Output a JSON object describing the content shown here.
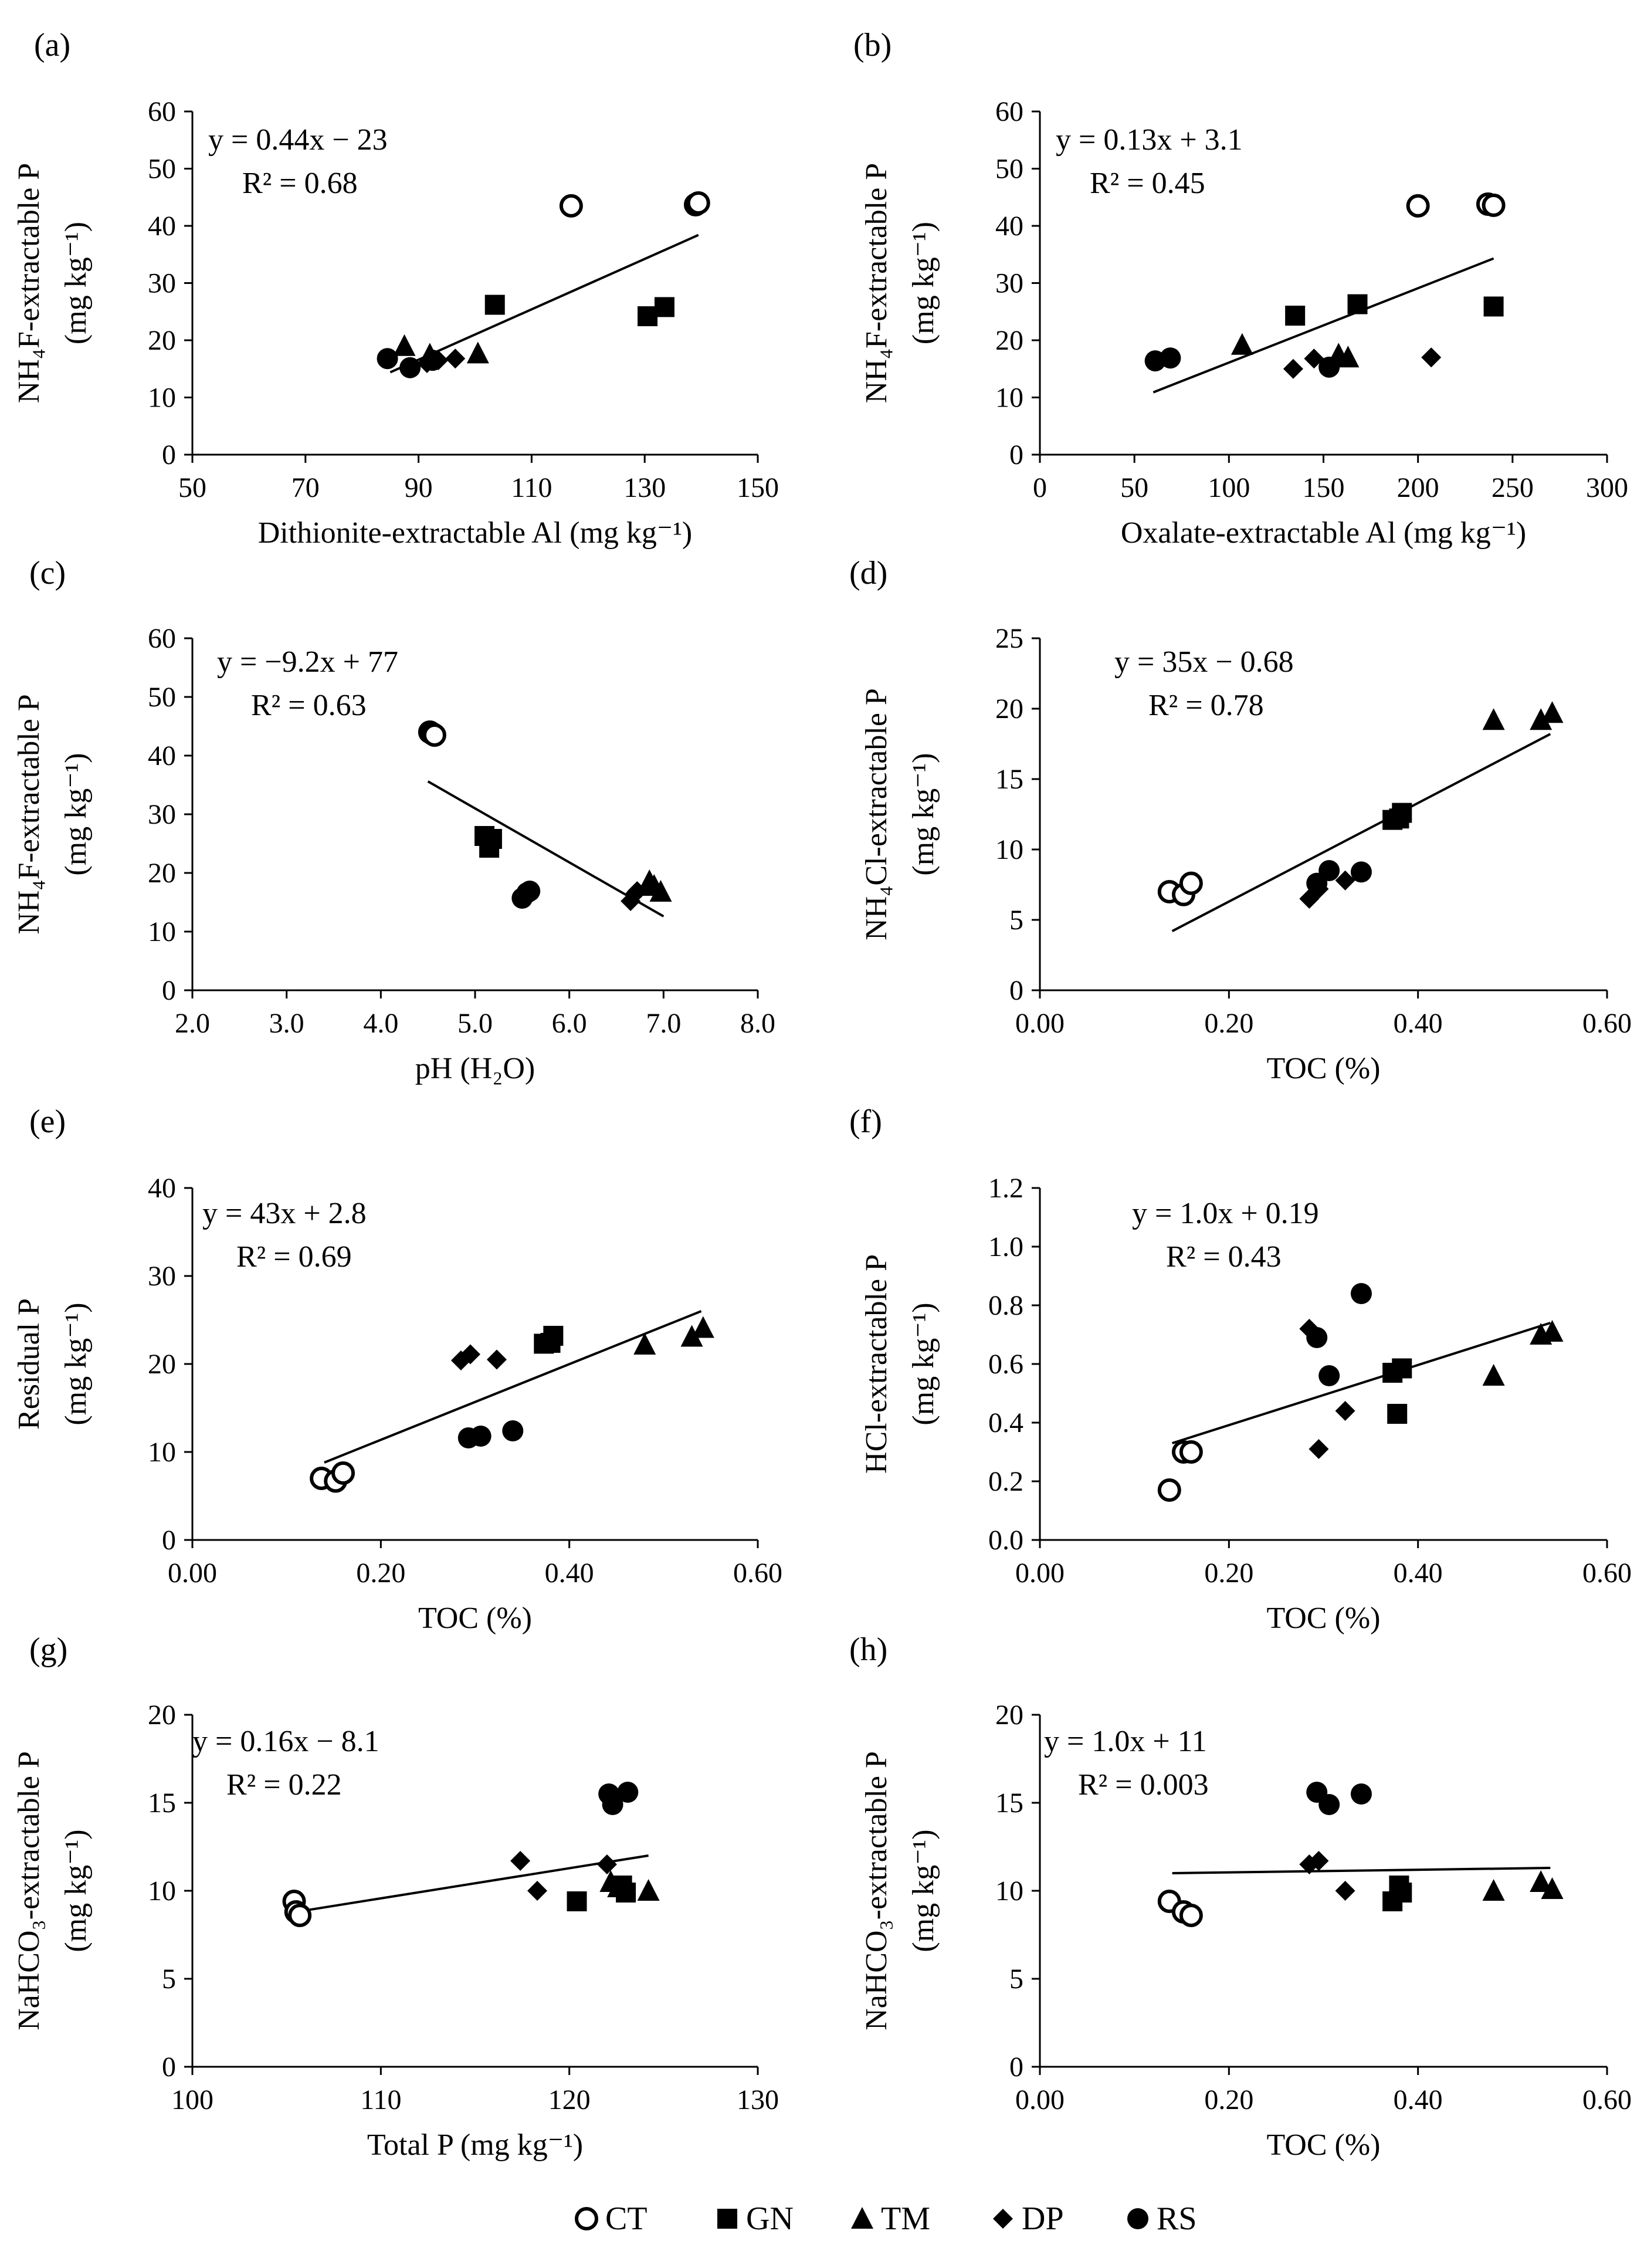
{
  "chart_data": [
    {
      "panel": "(a)",
      "type": "scatter",
      "xlabel": "Dithionite-extractable Al (mg kg⁻¹)",
      "ylabel_line1": "NH₄F-extractable P",
      "ylabel_line2": "(mg kg⁻¹)",
      "xlim": [
        50,
        150
      ],
      "ylim": [
        0,
        60
      ],
      "xticks": [
        "50",
        "70",
        "90",
        "110",
        "130",
        "150"
      ],
      "yticks": [
        "0",
        "10",
        "20",
        "30",
        "40",
        "50",
        "60"
      ],
      "equation": "y = 0.44x − 23",
      "r2": "R² = 0.68",
      "trend": [
        [
          85,
          14.4
        ],
        [
          139.5,
          38.4
        ]
      ],
      "series": [
        {
          "name": "CT",
          "x": [
            117,
            139,
            139.5
          ],
          "y": [
            43.5,
            43.7,
            44
          ]
        },
        {
          "name": "GN",
          "x": [
            103.5,
            130.5,
            133.5
          ],
          "y": [
            26.2,
            24.2,
            25.8
          ]
        },
        {
          "name": "TM",
          "x": [
            87.5,
            92,
            100.5
          ],
          "y": [
            19,
            17.5,
            17.7
          ]
        },
        {
          "name": "DP",
          "x": [
            91.5,
            93.5,
            96.5
          ],
          "y": [
            16,
            16.5,
            16.8
          ]
        },
        {
          "name": "RS",
          "x": [
            84.5,
            88.5,
            92.5
          ],
          "y": [
            16.8,
            15.2,
            16.5
          ]
        }
      ]
    },
    {
      "panel": "(b)",
      "type": "scatter",
      "xlabel": "Oxalate-extractable Al (mg kg⁻¹)",
      "ylabel_line1": "NH₄F-extractable P",
      "ylabel_line2": "(mg kg⁻¹)",
      "xlim": [
        0,
        300
      ],
      "ylim": [
        0,
        60
      ],
      "xticks": [
        "0",
        "50",
        "100",
        "150",
        "200",
        "250",
        "300"
      ],
      "yticks": [
        "0",
        "10",
        "20",
        "30",
        "40",
        "50",
        "60"
      ],
      "equation": "y = 0.13x + 3.1",
      "r2": "R² = 0.45",
      "trend": [
        [
          60,
          10.9
        ],
        [
          240,
          34.3
        ]
      ],
      "series": [
        {
          "name": "CT",
          "x": [
            200,
            237,
            240
          ],
          "y": [
            43.5,
            43.8,
            43.6
          ]
        },
        {
          "name": "GN",
          "x": [
            135,
            168,
            240
          ],
          "y": [
            24.3,
            26.3,
            25.9
          ]
        },
        {
          "name": "TM",
          "x": [
            107,
            158,
            163
          ],
          "y": [
            19.2,
            17.5,
            17
          ]
        },
        {
          "name": "DP",
          "x": [
            134,
            145,
            207
          ],
          "y": [
            15,
            16.8,
            17
          ]
        },
        {
          "name": "RS",
          "x": [
            61,
            69,
            153
          ],
          "y": [
            16.4,
            16.9,
            15.3
          ]
        }
      ]
    },
    {
      "panel": "(c)",
      "type": "scatter",
      "xlabel": "pH (H₂O)",
      "ylabel_line1": "NH₄F-extractable P",
      "ylabel_line2": "(mg kg⁻¹)",
      "xlim": [
        2,
        8
      ],
      "ylim": [
        0,
        60
      ],
      "xticks": [
        "2.0",
        "3.0",
        "4.0",
        "5.0",
        "6.0",
        "7.0",
        "8.0"
      ],
      "yticks": [
        "0",
        "10",
        "20",
        "30",
        "40",
        "50",
        "60"
      ],
      "equation": "y = −9.2x + 77",
      "r2": "R² = 0.63",
      "trend": [
        [
          4.5,
          35.6
        ],
        [
          7.0,
          12.6
        ]
      ],
      "series": [
        {
          "name": "CT",
          "x": [
            4.52,
            4.55,
            4.57
          ],
          "y": [
            44,
            43.7,
            43.5
          ]
        },
        {
          "name": "GN",
          "x": [
            5.1,
            5.15,
            5.18
          ],
          "y": [
            26.3,
            24.3,
            25.8
          ]
        },
        {
          "name": "TM",
          "x": [
            6.85,
            6.9,
            6.97
          ],
          "y": [
            18.6,
            17.8,
            16.8
          ]
        },
        {
          "name": "DP",
          "x": [
            6.65,
            6.7,
            6.72
          ],
          "y": [
            15.2,
            16.5,
            16.9
          ]
        },
        {
          "name": "RS",
          "x": [
            5.5,
            5.55,
            5.58
          ],
          "y": [
            15.7,
            16.6,
            16.9
          ]
        }
      ]
    },
    {
      "panel": "(d)",
      "type": "scatter",
      "xlabel": "TOC (%)",
      "ylabel_line1": "NH₄Cl-extractable P",
      "ylabel_line2": "(mg kg⁻¹)",
      "xlim": [
        0,
        0.6
      ],
      "ylim": [
        0,
        25
      ],
      "xticks": [
        "0.00",
        "0.20",
        "0.40",
        "0.60"
      ],
      "yticks": [
        "0",
        "5",
        "10",
        "15",
        "20",
        "25"
      ],
      "equation": "y = 35x − 0.68",
      "r2": "R² = 0.78",
      "trend": [
        [
          0.14,
          4.2
        ],
        [
          0.54,
          18.2
        ]
      ],
      "series": [
        {
          "name": "CT",
          "x": [
            0.137,
            0.152,
            0.16
          ],
          "y": [
            7,
            6.8,
            7.6
          ]
        },
        {
          "name": "GN",
          "x": [
            0.373,
            0.38,
            0.383
          ],
          "y": [
            12.1,
            12.2,
            12.6
          ]
        },
        {
          "name": "TM",
          "x": [
            0.48,
            0.53,
            0.542
          ],
          "y": [
            19.2,
            19.2,
            19.7
          ]
        },
        {
          "name": "DP",
          "x": [
            0.285,
            0.295,
            0.323
          ],
          "y": [
            6.5,
            7.2,
            7.8
          ]
        },
        {
          "name": "RS",
          "x": [
            0.293,
            0.306,
            0.34
          ],
          "y": [
            7.6,
            8.5,
            8.4
          ]
        }
      ]
    },
    {
      "panel": "(e)",
      "type": "scatter",
      "xlabel": "TOC (%)",
      "ylabel_line1": "Residual P",
      "ylabel_line2": "(mg kg⁻¹)",
      "xlim": [
        0,
        0.6
      ],
      "ylim": [
        0,
        40
      ],
      "xticks": [
        "0.00",
        "0.20",
        "0.40",
        "0.60"
      ],
      "yticks": [
        "0",
        "10",
        "20",
        "30",
        "40"
      ],
      "equation": "y = 43x + 2.8",
      "r2": "R² = 0.69",
      "trend": [
        [
          0.14,
          8.8
        ],
        [
          0.54,
          26.0
        ]
      ],
      "series": [
        {
          "name": "CT",
          "x": [
            0.137,
            0.152,
            0.16
          ],
          "y": [
            7,
            6.7,
            7.6
          ]
        },
        {
          "name": "GN",
          "x": [
            0.373,
            0.38,
            0.383
          ],
          "y": [
            22.3,
            22.4,
            23.2
          ]
        },
        {
          "name": "TM",
          "x": [
            0.48,
            0.53,
            0.542
          ],
          "y": [
            22.2,
            23.1,
            24.1
          ]
        },
        {
          "name": "DP",
          "x": [
            0.285,
            0.295,
            0.323
          ],
          "y": [
            20.4,
            21.1,
            20.5
          ]
        },
        {
          "name": "RS",
          "x": [
            0.293,
            0.306,
            0.34
          ],
          "y": [
            11.6,
            11.8,
            12.4
          ]
        }
      ]
    },
    {
      "panel": "(f)",
      "type": "scatter",
      "xlabel": "TOC (%)",
      "ylabel_line1": "HCl-extractable P",
      "ylabel_line2": "(mg kg⁻¹)",
      "xlim": [
        0,
        0.6
      ],
      "ylim": [
        0,
        1.2
      ],
      "xticks": [
        "0.00",
        "0.20",
        "0.40",
        "0.60"
      ],
      "yticks": [
        "0.0",
        "0.2",
        "0.4",
        "0.6",
        "0.8",
        "1.0",
        "1.2"
      ],
      "equation": "y = 1.0x + 0.19",
      "r2": "R² = 0.43",
      "trend": [
        [
          0.14,
          0.33
        ],
        [
          0.54,
          0.74
        ]
      ],
      "series": [
        {
          "name": "CT",
          "x": [
            0.137,
            0.152,
            0.16
          ],
          "y": [
            0.17,
            0.3,
            0.3
          ]
        },
        {
          "name": "GN",
          "x": [
            0.373,
            0.378,
            0.383
          ],
          "y": [
            0.57,
            0.43,
            0.585
          ]
        },
        {
          "name": "TM",
          "x": [
            0.48,
            0.53,
            0.542
          ],
          "y": [
            0.56,
            0.7,
            0.71
          ]
        },
        {
          "name": "DP",
          "x": [
            0.285,
            0.295,
            0.323
          ],
          "y": [
            0.72,
            0.31,
            0.44
          ]
        },
        {
          "name": "RS",
          "x": [
            0.293,
            0.306,
            0.34
          ],
          "y": [
            0.69,
            0.56,
            0.84
          ]
        }
      ]
    },
    {
      "panel": "(g)",
      "type": "scatter",
      "xlabel": "Total P (mg kg⁻¹)",
      "ylabel_line1": "NaHCO₃-extractable P",
      "ylabel_line2": "(mg kg⁻¹)",
      "xlim": [
        100,
        130
      ],
      "ylim": [
        0,
        20
      ],
      "xticks": [
        "100",
        "110",
        "120",
        "130"
      ],
      "yticks": [
        "0",
        "5",
        "10",
        "15",
        "20"
      ],
      "equation": "y = 0.16x − 8.1",
      "r2": "R² = 0.22",
      "trend": [
        [
          105.5,
          8.8
        ],
        [
          124.2,
          12.0
        ]
      ],
      "series": [
        {
          "name": "CT",
          "x": [
            105.4,
            105.5,
            105.7
          ],
          "y": [
            9.4,
            8.8,
            8.6
          ]
        },
        {
          "name": "GN",
          "x": [
            120.4,
            122.8,
            123.0
          ],
          "y": [
            9.4,
            10.3,
            9.9
          ]
        },
        {
          "name": "TM",
          "x": [
            122.2,
            122.6,
            124.2
          ],
          "y": [
            10.5,
            10.2,
            10.0
          ]
        },
        {
          "name": "DP",
          "x": [
            117.4,
            118.3,
            122.0
          ],
          "y": [
            11.7,
            10.0,
            11.5
          ]
        },
        {
          "name": "RS",
          "x": [
            122.1,
            122.3,
            123.1
          ],
          "y": [
            15.5,
            14.9,
            15.6
          ]
        }
      ]
    },
    {
      "panel": "(h)",
      "type": "scatter",
      "xlabel": "TOC (%)",
      "ylabel_line1": "NaHCO₃-extractable P",
      "ylabel_line2": "(mg kg⁻¹)",
      "xlim": [
        0,
        0.6
      ],
      "ylim": [
        0,
        20
      ],
      "xticks": [
        "0.00",
        "0.20",
        "0.40",
        "0.60"
      ],
      "yticks": [
        "0",
        "5",
        "10",
        "15",
        "20"
      ],
      "equation": "y = 1.0x + 11",
      "r2": "R² = 0.003",
      "trend": [
        [
          0.14,
          11.0
        ],
        [
          0.54,
          11.3
        ]
      ],
      "series": [
        {
          "name": "CT",
          "x": [
            0.137,
            0.152,
            0.16
          ],
          "y": [
            9.4,
            8.8,
            8.6
          ]
        },
        {
          "name": "GN",
          "x": [
            0.373,
            0.38,
            0.383
          ],
          "y": [
            9.4,
            10.3,
            9.9
          ]
        },
        {
          "name": "TM",
          "x": [
            0.48,
            0.53,
            0.542
          ],
          "y": [
            10.0,
            10.5,
            10.1
          ]
        },
        {
          "name": "DP",
          "x": [
            0.285,
            0.295,
            0.323
          ],
          "y": [
            11.5,
            11.7,
            10.0
          ]
        },
        {
          "name": "RS",
          "x": [
            0.293,
            0.306,
            0.34
          ],
          "y": [
            15.6,
            14.9,
            15.5
          ]
        }
      ]
    }
  ],
  "legend": [
    {
      "name": "CT",
      "marker": "open-circle"
    },
    {
      "name": "GN",
      "marker": "square"
    },
    {
      "name": "TM",
      "marker": "triangle"
    },
    {
      "name": "DP",
      "marker": "diamond"
    },
    {
      "name": "RS",
      "marker": "filled-circle"
    }
  ],
  "colors": {
    "marker": "#000000",
    "background": "#ffffff"
  }
}
